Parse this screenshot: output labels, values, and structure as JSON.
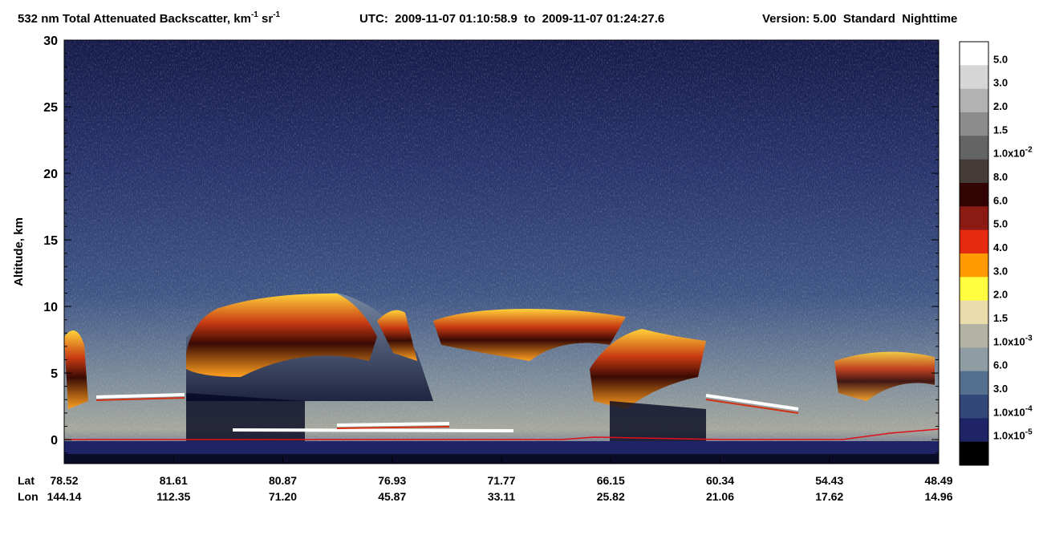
{
  "chart_data": {
    "type": "curtain",
    "title_parts": [
      "532 nm Total Attenuated Backscatter, km",
      "-1",
      " sr",
      "-1"
    ],
    "utc": "UTC:  2009-11-07 01:10:58.9  to  2009-11-07 01:24:27.6",
    "version": "Version: 5.00  Standard  Nighttime",
    "ylabel": "Altitude, km",
    "ylim": [
      -1.8,
      30
    ],
    "yticks": [
      0,
      5,
      10,
      15,
      20,
      25,
      30
    ],
    "x_rows": [
      {
        "label": "Lat",
        "values": [
          "78.52",
          "81.61",
          "80.87",
          "76.93",
          "71.77",
          "66.15",
          "60.34",
          "54.43",
          "48.49"
        ]
      },
      {
        "label": "Lon",
        "values": [
          "144.14",
          "112.35",
          "71.20",
          "45.87",
          "33.11",
          "25.82",
          "21.06",
          "17.62",
          "14.96"
        ]
      }
    ],
    "colorbar": {
      "colors": [
        "#ffffff",
        "#d6d6d6",
        "#b2b2b2",
        "#8c8c8c",
        "#646464",
        "#463c37",
        "#320402",
        "#8a1a12",
        "#e62a10",
        "#ff9a00",
        "#ffff40",
        "#eadbaa",
        "#b4b2a2",
        "#8e9ca4",
        "#55708e",
        "#33487a",
        "#1e2466",
        "#000000"
      ],
      "ticks": [
        {
          "text": "5.0"
        },
        {
          "text": "3.0"
        },
        {
          "text": "2.0"
        },
        {
          "text": "1.5"
        },
        {
          "text": "1.0x10",
          "sup": "-2"
        },
        {
          "text": "8.0"
        },
        {
          "text": "6.0"
        },
        {
          "text": "5.0"
        },
        {
          "text": "4.0"
        },
        {
          "text": "3.0"
        },
        {
          "text": "2.0"
        },
        {
          "text": "1.5"
        },
        {
          "text": "1.0x10",
          "sup": "-3"
        },
        {
          "text": "6.0"
        },
        {
          "text": "3.0"
        },
        {
          "text": "1.0x10",
          "sup": "-4"
        },
        {
          "text": "1.0x10",
          "sup": "-5"
        }
      ]
    }
  }
}
